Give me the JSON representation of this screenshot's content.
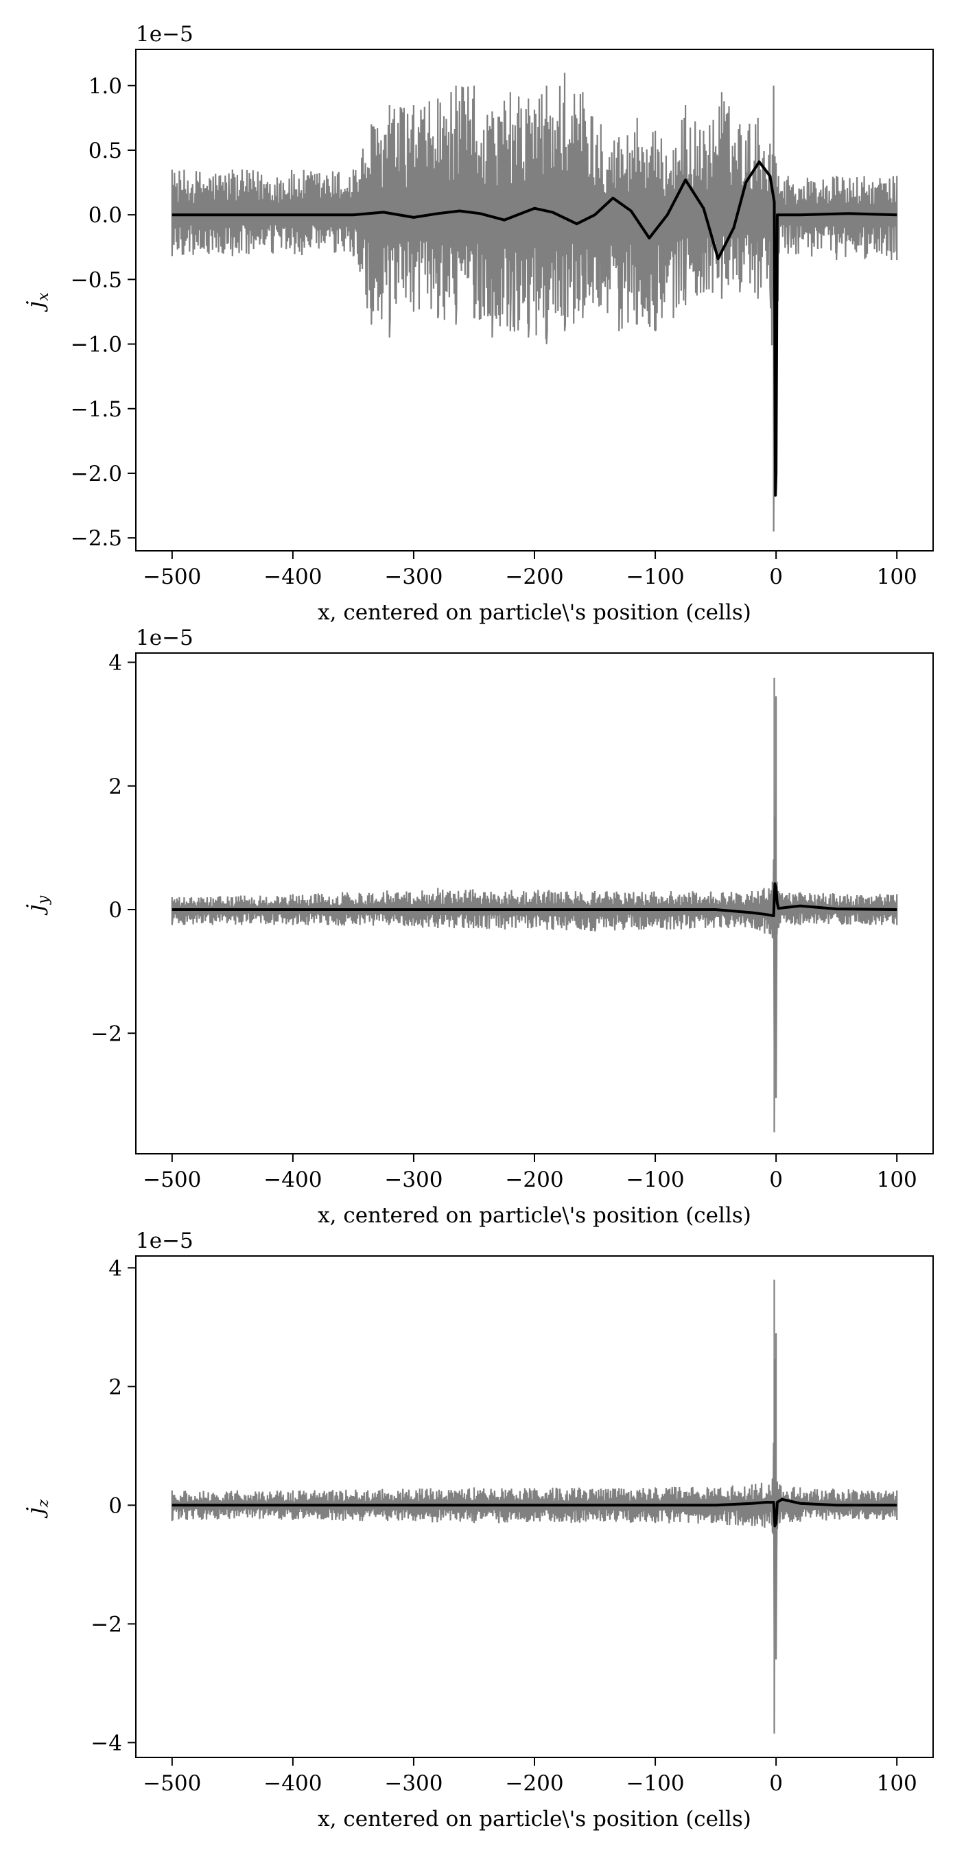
{
  "chart_data": [
    {
      "type": "line",
      "panel": "jx",
      "ylabel_main": "j",
      "ylabel_sub": "x",
      "xlabel": "x, centered on particle\\'s position (cells)",
      "offset_label": "1e−5",
      "xlim": [
        -530,
        130
      ],
      "ylim": [
        -2.6,
        1.28
      ],
      "xticks": [
        -500,
        -400,
        -300,
        -200,
        -100,
        0,
        100
      ],
      "xtick_labels": [
        "−500",
        "−400",
        "−300",
        "−200",
        "−100",
        "0",
        "100"
      ],
      "yticks": [
        1.0,
        0.5,
        0.0,
        -0.5,
        -1.0,
        -1.5,
        -2.0,
        -2.5
      ],
      "ytick_labels": [
        "1.0",
        "0.5",
        "0.0",
        "−0.5",
        "−1.0",
        "−1.5",
        "−2.0",
        "−2.5"
      ],
      "grid": false,
      "series": [
        {
          "color": "#808080",
          "x": [
            -500,
            -450,
            -350,
            -335,
            -320,
            -300,
            -280,
            -265,
            -250,
            -235,
            -220,
            -205,
            -190,
            -175,
            -160,
            -145,
            -130,
            -115,
            -100,
            -85,
            -75,
            -60,
            -45,
            -30,
            -15,
            -5,
            -2,
            0,
            2,
            10,
            50,
            100
          ],
          "upper": [
            0.35,
            0.35,
            0.35,
            0.7,
            0.85,
            0.85,
            0.9,
            1.0,
            1.0,
            0.8,
            0.95,
            0.9,
            1.0,
            1.1,
            0.95,
            0.7,
            0.6,
            0.75,
            0.65,
            0.5,
            0.85,
            0.65,
            0.95,
            0.7,
            0.75,
            0.55,
            1.0,
            0.4,
            0.3,
            0.3,
            0.3,
            0.3
          ],
          "lower": [
            -0.32,
            -0.32,
            -0.32,
            -0.85,
            -0.95,
            -0.75,
            -0.8,
            -0.85,
            -0.8,
            -0.95,
            -0.9,
            -0.95,
            -1.0,
            -0.9,
            -0.8,
            -0.7,
            -0.9,
            -0.85,
            -0.9,
            -0.8,
            -0.7,
            -0.6,
            -0.65,
            -0.6,
            -0.65,
            -0.55,
            -2.45,
            -2.0,
            -0.3,
            -0.3,
            -0.35,
            -0.35
          ]
        },
        {
          "color": "#000000",
          "x": [
            -500,
            -350,
            -325,
            -300,
            -280,
            -262,
            -245,
            -225,
            -200,
            -185,
            -165,
            -150,
            -135,
            -120,
            -105,
            -90,
            -75,
            -60,
            -48,
            -35,
            -25,
            -14,
            -5,
            -1.5,
            -0.5,
            0,
            1,
            20,
            60,
            100
          ],
          "y": [
            0.0,
            0.0,
            0.02,
            -0.02,
            0.01,
            0.03,
            0.01,
            -0.04,
            0.05,
            0.02,
            -0.07,
            0.0,
            0.13,
            0.03,
            -0.18,
            0.0,
            0.27,
            0.05,
            -0.34,
            -0.1,
            0.25,
            0.41,
            0.3,
            0.1,
            -2.17,
            -2.0,
            0.0,
            0.0,
            0.01,
            0.0
          ]
        }
      ]
    },
    {
      "type": "line",
      "panel": "jy",
      "ylabel_main": "j",
      "ylabel_sub": "y",
      "xlabel": "x, centered on particle\\'s position (cells)",
      "offset_label": "1e−5",
      "xlim": [
        -530,
        130
      ],
      "ylim": [
        -3.95,
        4.15
      ],
      "xticks": [
        -500,
        -400,
        -300,
        -200,
        -100,
        0,
        100
      ],
      "xtick_labels": [
        "−500",
        "−400",
        "−300",
        "−200",
        "−100",
        "0",
        "100"
      ],
      "yticks": [
        4,
        2,
        0,
        -2
      ],
      "ytick_labels": [
        "4",
        "2",
        "0",
        "−2"
      ],
      "grid": false,
      "series": [
        {
          "color": "#808080",
          "x": [
            -500,
            -400,
            -280,
            -150,
            -20,
            -3,
            -1.5,
            -0.8,
            0,
            0.8,
            2,
            20,
            100
          ],
          "upper": [
            0.2,
            0.25,
            0.35,
            0.3,
            0.3,
            0.45,
            3.75,
            1.5,
            3.45,
            0.45,
            0.3,
            0.28,
            0.25
          ],
          "lower": [
            -0.25,
            -0.25,
            -0.3,
            -0.35,
            -0.3,
            -0.45,
            -3.6,
            -1.5,
            -3.05,
            -0.4,
            -0.3,
            -0.25,
            -0.25
          ]
        },
        {
          "color": "#000000",
          "x": [
            -500,
            -200,
            -50,
            -20,
            -8,
            -2,
            -1,
            0,
            1,
            2,
            20,
            50,
            100
          ],
          "y": [
            0.0,
            0.0,
            0.0,
            -0.05,
            -0.08,
            -0.1,
            0.42,
            0.35,
            0.1,
            0.02,
            0.06,
            0.01,
            0.0
          ]
        }
      ]
    },
    {
      "type": "line",
      "panel": "jz",
      "ylabel_main": "j",
      "ylabel_sub": "z",
      "xlabel": "x, centered on particle\\'s position (cells)",
      "offset_label": "1e−5",
      "xlim": [
        -530,
        130
      ],
      "ylim": [
        -4.25,
        4.2
      ],
      "xticks": [
        -500,
        -400,
        -300,
        -200,
        -100,
        0,
        100
      ],
      "xtick_labels": [
        "−500",
        "−400",
        "−300",
        "−200",
        "−100",
        "0",
        "100"
      ],
      "yticks": [
        4,
        2,
        0,
        -2,
        -4
      ],
      "ytick_labels": [
        "4",
        "2",
        "0",
        "−2",
        "−4"
      ],
      "grid": false,
      "series": [
        {
          "color": "#808080",
          "x": [
            -500,
            -400,
            -250,
            -100,
            -20,
            -3,
            -1.5,
            -0.5,
            0,
            1,
            3,
            20,
            100
          ],
          "upper": [
            0.25,
            0.25,
            0.3,
            0.3,
            0.35,
            0.45,
            3.8,
            1.2,
            2.9,
            0.4,
            0.35,
            0.3,
            0.25
          ],
          "lower": [
            -0.25,
            -0.25,
            -0.3,
            -0.3,
            -0.35,
            -0.45,
            -3.85,
            -1.0,
            -2.6,
            -0.4,
            -0.3,
            -0.28,
            -0.25
          ]
        },
        {
          "color": "#000000",
          "x": [
            -500,
            -200,
            -50,
            -20,
            -8,
            -2,
            -1,
            0,
            1,
            5,
            20,
            50,
            100
          ],
          "y": [
            0.0,
            0.0,
            0.0,
            0.03,
            0.05,
            0.05,
            -0.35,
            -0.3,
            0.05,
            0.1,
            0.03,
            0.0,
            0.0
          ]
        }
      ]
    }
  ]
}
